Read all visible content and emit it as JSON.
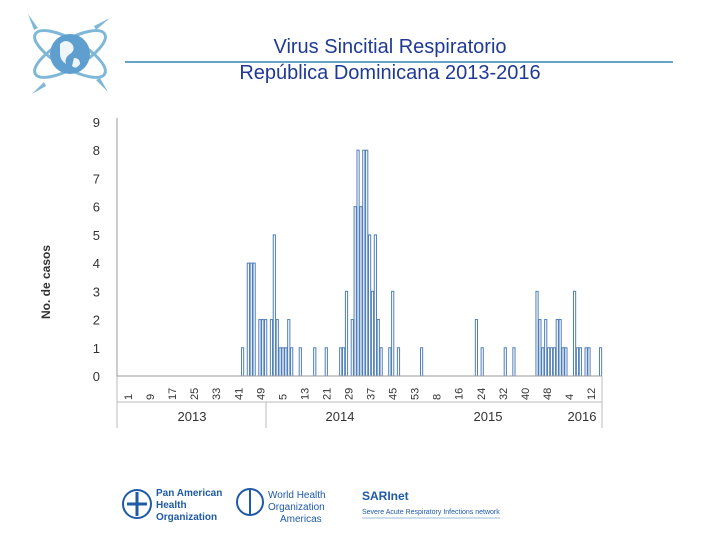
{
  "title": {
    "line1": "Virus Sincitial Respiratorio",
    "line2": "República Dominicana 2013-2016"
  },
  "colors": {
    "title": "#1f3a93",
    "bar_stroke": "#4f7fb8",
    "accent": "#6aa3c8"
  },
  "chart_data": {
    "type": "bar",
    "ylabel": "No. de casos",
    "ylim": [
      0,
      9
    ],
    "yticks": [
      0,
      1,
      2,
      3,
      4,
      5,
      6,
      7,
      8,
      9
    ],
    "xtick_labels": [
      "1",
      "9",
      "17",
      "25",
      "33",
      "41",
      "49",
      "5",
      "13",
      "21",
      "29",
      "37",
      "45",
      "53",
      "8",
      "16",
      "24",
      "32",
      "40",
      "48",
      "4",
      "12"
    ],
    "years": [
      "2013",
      "2014",
      "2015",
      "2016"
    ],
    "categories_note": "Epidemiological weeks 2013-W1 through 2016-W13",
    "values": [
      0,
      0,
      0,
      0,
      0,
      0,
      0,
      0,
      0,
      0,
      0,
      0,
      0,
      0,
      0,
      0,
      0,
      0,
      0,
      0,
      0,
      0,
      0,
      0,
      0,
      0,
      0,
      0,
      0,
      0,
      0,
      0,
      0,
      0,
      0,
      0,
      0,
      0,
      0,
      0,
      0,
      0,
      0,
      1,
      0,
      4,
      4,
      4,
      0,
      2,
      2,
      2,
      0,
      2,
      5,
      2,
      1,
      1,
      1,
      2,
      1,
      0,
      0,
      1,
      0,
      0,
      0,
      0,
      1,
      0,
      0,
      0,
      1,
      0,
      0,
      0,
      0,
      1,
      1,
      3,
      0,
      2,
      6,
      8,
      6,
      8,
      8,
      5,
      3,
      5,
      2,
      1,
      0,
      0,
      1,
      3,
      0,
      1,
      0,
      0,
      0,
      0,
      0,
      0,
      0,
      1,
      0,
      0,
      0,
      0,
      0,
      0,
      0,
      0,
      0,
      0,
      0,
      0,
      0,
      0,
      0,
      0,
      0,
      0,
      2,
      0,
      1,
      0,
      0,
      0,
      0,
      0,
      0,
      0,
      1,
      0,
      0,
      1,
      0,
      0,
      0,
      0,
      0,
      0,
      0,
      3,
      2,
      1,
      2,
      1,
      1,
      1,
      2,
      2,
      1,
      1,
      0,
      0,
      3,
      1,
      1,
      0,
      1,
      1,
      0,
      0,
      0,
      1
    ]
  },
  "logos": {
    "paho_line1": "Pan American",
    "paho_line2": "Health",
    "paho_line3": "Organization",
    "who_line1": "World Health",
    "who_line2": "Organization",
    "who_line3": "Americas",
    "sari_name": "SARInet",
    "sari_sub": "Severe Acute Respiratory Infections network"
  }
}
